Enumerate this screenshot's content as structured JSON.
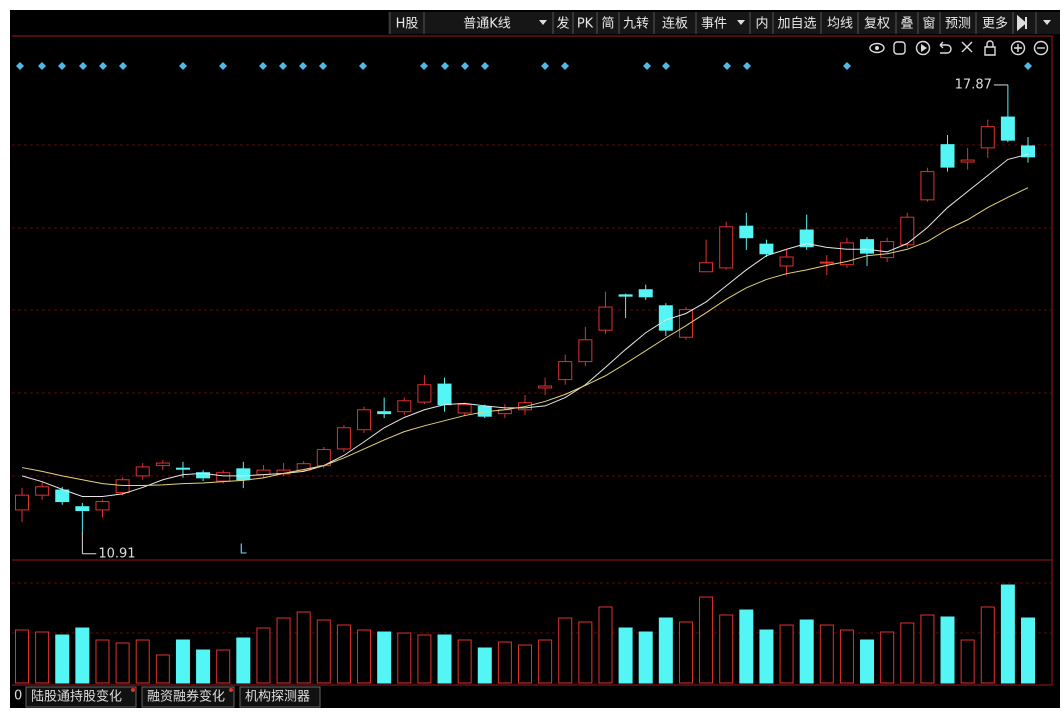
{
  "toolbar": [
    "H股",
    "普通K线",
    "发",
    "PK",
    "简",
    "九转",
    "连板",
    "事件",
    "内",
    "加自选",
    "均线",
    "复权",
    "叠",
    "窗",
    "预测",
    "更多"
  ],
  "chart_data": {
    "type": "candlestick",
    "open": [
      11.25,
      11.48,
      11.56,
      11.3,
      11.25,
      11.52,
      11.78,
      11.94,
      11.9,
      11.83,
      11.7,
      11.89,
      11.8,
      11.81,
      11.87,
      11.94,
      12.2,
      12.5,
      12.78,
      12.78,
      12.93,
      13.21,
      12.76,
      12.86,
      12.75,
      12.81,
      13.15,
      13.28,
      13.56,
      14.05,
      14.6,
      14.68,
      14.43,
      13.94,
      14.96,
      15.02,
      15.67,
      15.39,
      15.05,
      15.61,
      15.1,
      15.07,
      15.46,
      15.18,
      15.38,
      16.08,
      16.94,
      16.67,
      16.89,
      17.37,
      16.92
    ],
    "high": [
      11.59,
      11.69,
      11.61,
      11.36,
      11.41,
      11.76,
      11.98,
      12.03,
      12.0,
      11.87,
      11.87,
      12.0,
      11.95,
      11.98,
      12.01,
      12.23,
      12.57,
      12.86,
      13.0,
      13.0,
      13.35,
      13.31,
      12.92,
      12.89,
      12.9,
      13.04,
      13.31,
      13.67,
      14.1,
      14.65,
      14.62,
      14.76,
      14.47,
      14.41,
      15.46,
      15.74,
      15.88,
      15.46,
      15.3,
      15.85,
      15.22,
      15.49,
      15.5,
      15.49,
      15.88,
      16.58,
      17.09,
      16.89,
      17.33,
      17.87,
      17.06
    ],
    "low": [
      11.06,
      11.41,
      11.33,
      10.91,
      11.13,
      11.48,
      11.72,
      11.87,
      11.75,
      11.7,
      11.66,
      11.59,
      11.75,
      11.78,
      11.84,
      11.9,
      12.15,
      12.45,
      12.68,
      12.73,
      12.9,
      12.78,
      12.71,
      12.68,
      12.68,
      12.73,
      13.04,
      13.2,
      13.49,
      13.99,
      14.24,
      14.52,
      13.96,
      13.9,
      14.96,
      14.99,
      15.3,
      15.19,
      14.9,
      15.3,
      14.91,
      15.02,
      15.05,
      15.11,
      15.33,
      16.05,
      16.52,
      16.55,
      16.73,
      16.98,
      16.66
    ],
    "close": [
      11.48,
      11.61,
      11.38,
      11.24,
      11.38,
      11.72,
      11.92,
      11.98,
      11.89,
      11.75,
      11.83,
      11.72,
      11.87,
      11.87,
      11.97,
      12.19,
      12.53,
      12.81,
      12.75,
      12.95,
      13.2,
      12.89,
      12.89,
      12.71,
      12.81,
      12.92,
      13.18,
      13.56,
      13.9,
      14.41,
      14.58,
      14.57,
      14.05,
      14.37,
      15.1,
      15.66,
      15.49,
      15.24,
      15.19,
      15.35,
      15.11,
      15.41,
      15.25,
      15.43,
      15.81,
      16.52,
      16.59,
      16.7,
      17.22,
      17.01,
      16.75
    ],
    "up_color": "#e0312f",
    "down_color": "#54f5f5",
    "ylim": [
      10.47,
      18.57
    ],
    "ma_lines": [
      {
        "color": "#e6e6e6",
        "values": [
          11.78,
          11.69,
          11.57,
          11.46,
          11.46,
          11.5,
          11.6,
          11.72,
          11.8,
          11.82,
          11.78,
          11.78,
          11.8,
          11.82,
          11.85,
          11.94,
          12.1,
          12.31,
          12.53,
          12.69,
          12.81,
          12.89,
          12.91,
          12.87,
          12.84,
          12.84,
          12.87,
          13.0,
          13.2,
          13.47,
          13.75,
          14.01,
          14.21,
          14.31,
          14.49,
          14.74,
          14.99,
          15.21,
          15.31,
          15.4,
          15.34,
          15.31,
          15.31,
          15.27,
          15.4,
          15.65,
          15.96,
          16.21,
          16.46,
          16.71,
          16.79
        ]
      },
      {
        "color": "#e6d27a",
        "values": [
          11.91,
          11.85,
          11.78,
          11.72,
          11.66,
          11.63,
          11.63,
          11.64,
          11.66,
          11.67,
          11.69,
          11.71,
          11.75,
          11.82,
          11.88,
          11.94,
          12.06,
          12.2,
          12.34,
          12.47,
          12.56,
          12.64,
          12.72,
          12.78,
          12.81,
          12.86,
          12.94,
          13.05,
          13.19,
          13.34,
          13.53,
          13.73,
          13.93,
          14.12,
          14.32,
          14.53,
          14.71,
          14.84,
          14.93,
          14.99,
          15.06,
          15.12,
          15.21,
          15.24,
          15.31,
          15.43,
          15.62,
          15.77,
          15.96,
          16.12,
          16.27
        ]
      }
    ],
    "high_label": 17.87,
    "low_label": 10.91,
    "marker_label": "L",
    "volume": {
      "ylim": [
        0,
        120
      ],
      "values": [
        53,
        51,
        48,
        55,
        43,
        40,
        43,
        28,
        43,
        33,
        33,
        45,
        55,
        65,
        71,
        63,
        58,
        53,
        51,
        50,
        48,
        48,
        43,
        35,
        41,
        38,
        43,
        65,
        61,
        76,
        55,
        51,
        65,
        61,
        86,
        68,
        73,
        53,
        58,
        63,
        58,
        53,
        43,
        51,
        60,
        68,
        66,
        43,
        76,
        98,
        65
      ]
    }
  },
  "tabs": [
    "陆股通持股变化",
    "融资融券变化",
    "机构探测器"
  ]
}
